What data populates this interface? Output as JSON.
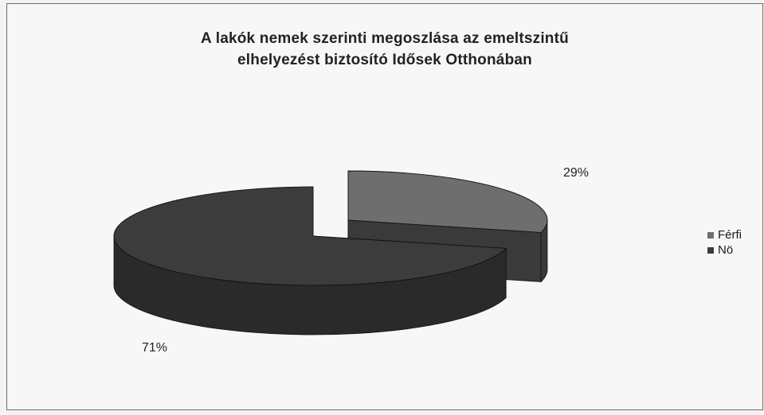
{
  "chart_data": {
    "type": "pie",
    "title_lines": [
      "A lakók nemek szerinti megoszlása az emeltszintű",
      "elhelyezést biztosító Idősek Otthonában"
    ],
    "categories": [
      "Férfi",
      "Nö"
    ],
    "values": [
      29,
      71
    ],
    "data_labels": [
      "29%",
      "71%"
    ],
    "legend_position": "right",
    "colors": {
      "Férfi": "#6e6e6e",
      "Nö": "#3c3c3c"
    },
    "side_colors": {
      "Férfi": "#3a3a3a",
      "Nö": "#2a2a2a"
    },
    "three_d": true,
    "exploded": true
  }
}
